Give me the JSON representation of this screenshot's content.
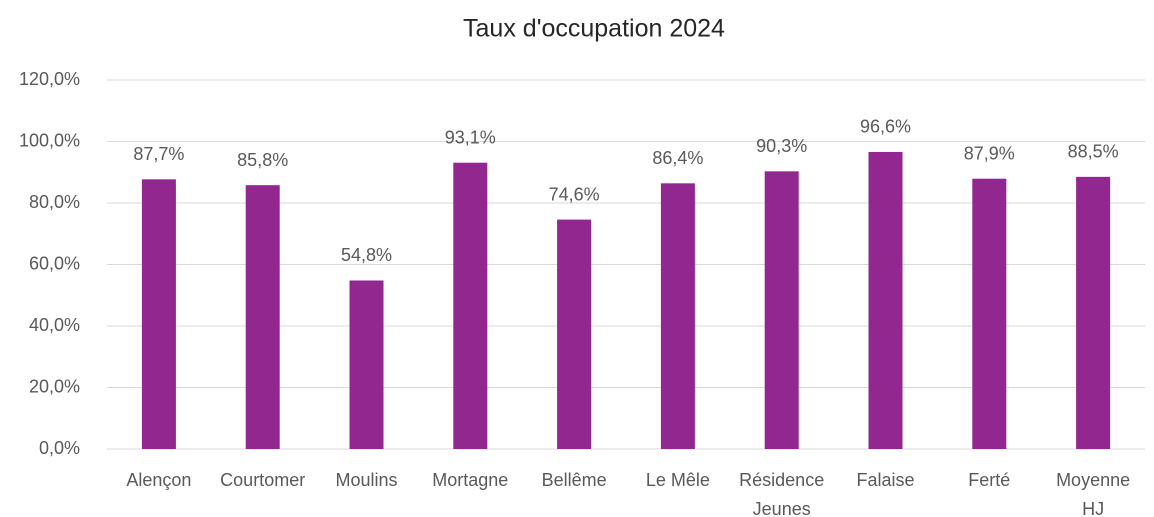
{
  "chart_data": {
    "type": "bar",
    "title": "Taux d'occupation 2024",
    "categories": [
      "Alençon",
      "Courtomer",
      "Moulins",
      "Mortagne",
      "Bellême",
      "Le Mêle",
      "Résidence Jeunes",
      "Falaise",
      "Ferté",
      "Moyenne HJ"
    ],
    "values": [
      87.7,
      85.8,
      54.8,
      93.1,
      74.6,
      86.4,
      90.3,
      96.6,
      87.9,
      88.5
    ],
    "value_labels": [
      "87,7%",
      "85,8%",
      "54,8%",
      "93,1%",
      "74,6%",
      "86,4%",
      "90,3%",
      "96,6%",
      "87,9%",
      "88,5%"
    ],
    "color": "#92278f",
    "ylim": [
      0,
      120
    ],
    "yticks": [
      {
        "value": 0,
        "label": "0,0%"
      },
      {
        "value": 20,
        "label": "20,0%"
      },
      {
        "value": 40,
        "label": "40,0%"
      },
      {
        "value": 60,
        "label": "60,0%"
      },
      {
        "value": 80,
        "label": "80,0%"
      },
      {
        "value": 100,
        "label": "100,0%"
      },
      {
        "value": 120,
        "label": "120,0%"
      }
    ],
    "grid": true
  }
}
